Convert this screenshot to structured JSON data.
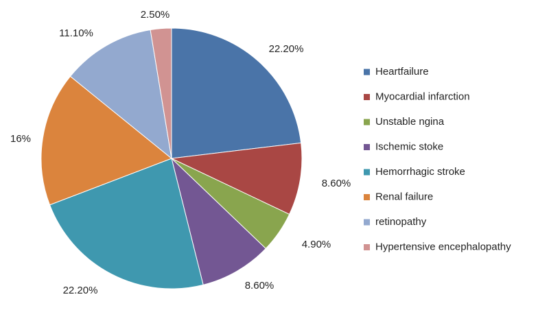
{
  "chart_data": {
    "type": "pie",
    "title": "",
    "slices": [
      {
        "label": "Heartfailure",
        "value": 22.2,
        "display": "22.20%",
        "color": "#4A74A8"
      },
      {
        "label": "Myocardial infarction",
        "value": 8.6,
        "display": "8.60%",
        "color": "#A94744"
      },
      {
        "label": "Unstable ngina",
        "value": 4.9,
        "display": "4.90%",
        "color": "#89A54E"
      },
      {
        "label": "Ischemic stoke",
        "value": 8.6,
        "display": "8.60%",
        "color": "#735793"
      },
      {
        "label": "Hemorrhagic stroke",
        "value": 22.2,
        "display": "22.20%",
        "color": "#3F98AF"
      },
      {
        "label": "Renal failure",
        "value": 16.0,
        "display": "16%",
        "color": "#DB843D"
      },
      {
        "label": "retinopathy",
        "value": 11.1,
        "display": "11.10%",
        "color": "#93A9CF"
      },
      {
        "label": "Hypertensive encephalopathy",
        "value": 2.5,
        "display": "2.50%",
        "color": "#D19392"
      }
    ],
    "start_angle": "12 o'clock",
    "direction": "clockwise",
    "legend_position": "right"
  }
}
